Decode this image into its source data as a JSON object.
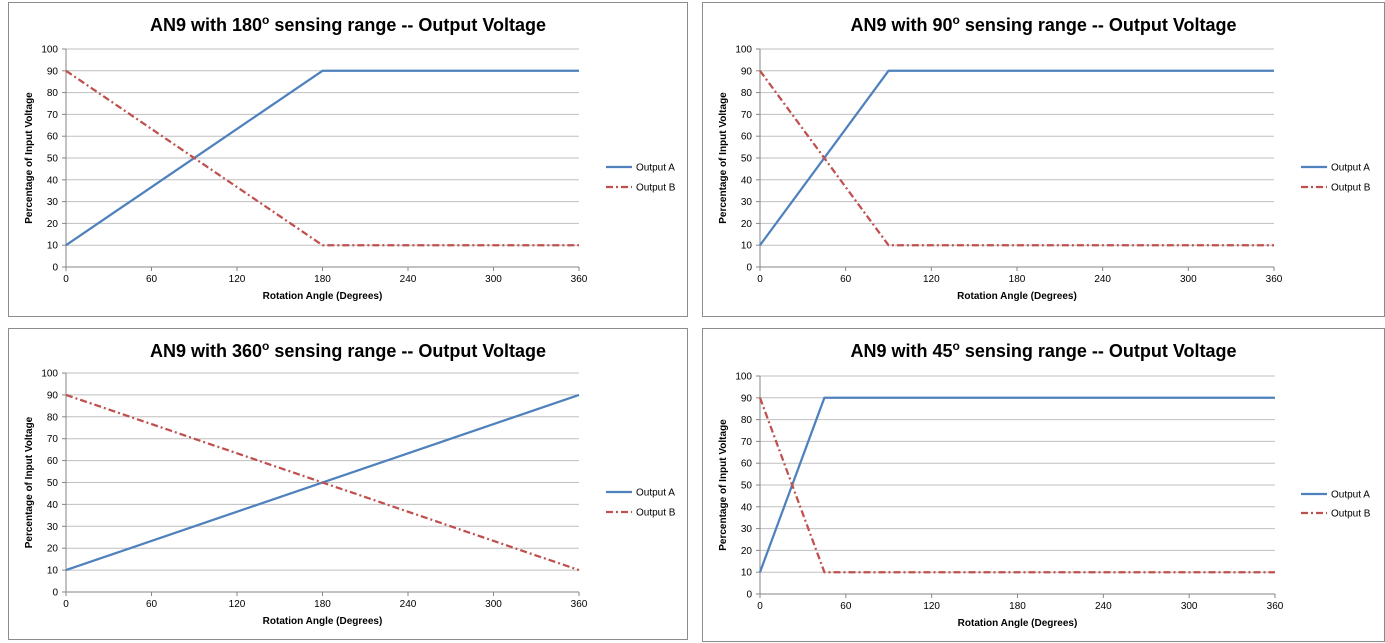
{
  "chart_data": [
    {
      "type": "line",
      "title": {
        "prefix": "AN9 with 180",
        "sup": "o",
        "suffix": " sensing range -- Output Voltage"
      },
      "xlabel": "Rotation Angle (Degrees)",
      "ylabel": "Percentage of Input Voltage",
      "xlim": [
        0,
        360
      ],
      "ylim": [
        0,
        100
      ],
      "xticks": [
        0,
        60,
        120,
        180,
        240,
        300,
        360
      ],
      "yticks": [
        0,
        10,
        20,
        30,
        40,
        50,
        60,
        70,
        80,
        90,
        100
      ],
      "grid": true,
      "legend_position": "right",
      "series": [
        {
          "name": "Output A",
          "color": "#4F81BD",
          "style": "solid",
          "points": [
            [
              0,
              10
            ],
            [
              180,
              90
            ],
            [
              360,
              90
            ]
          ]
        },
        {
          "name": "Output B",
          "color": "#C0504D",
          "style": "dash-dot",
          "points": [
            [
              0,
              90
            ],
            [
              180,
              10
            ],
            [
              360,
              10
            ]
          ]
        }
      ]
    },
    {
      "type": "line",
      "title": {
        "prefix": "AN9 with 90",
        "sup": "o",
        "suffix": " sensing range -- Output Voltage"
      },
      "xlabel": "Rotation Angle (Degrees)",
      "ylabel": "Percentage of Input Voltage",
      "xlim": [
        0,
        360
      ],
      "ylim": [
        0,
        100
      ],
      "xticks": [
        0,
        60,
        120,
        180,
        240,
        300,
        360
      ],
      "yticks": [
        0,
        10,
        20,
        30,
        40,
        50,
        60,
        70,
        80,
        90,
        100
      ],
      "grid": true,
      "legend_position": "right",
      "series": [
        {
          "name": "Output A",
          "color": "#4F81BD",
          "style": "solid",
          "points": [
            [
              0,
              10
            ],
            [
              90,
              90
            ],
            [
              360,
              90
            ]
          ]
        },
        {
          "name": "Output B",
          "color": "#C0504D",
          "style": "dash-dot",
          "points": [
            [
              0,
              90
            ],
            [
              90,
              10
            ],
            [
              360,
              10
            ]
          ]
        }
      ]
    },
    {
      "type": "line",
      "title": {
        "prefix": "AN9 with 360",
        "sup": "o",
        "suffix": " sensing range -- Output Voltage"
      },
      "xlabel": "Rotation Angle (Degrees)",
      "ylabel": "Percentage of Input Voltage",
      "xlim": [
        0,
        360
      ],
      "ylim": [
        0,
        100
      ],
      "xticks": [
        0,
        60,
        120,
        180,
        240,
        300,
        360
      ],
      "yticks": [
        0,
        10,
        20,
        30,
        40,
        50,
        60,
        70,
        80,
        90,
        100
      ],
      "grid": true,
      "legend_position": "right",
      "series": [
        {
          "name": "Output A",
          "color": "#4F81BD",
          "style": "solid",
          "points": [
            [
              0,
              10
            ],
            [
              360,
              90
            ]
          ]
        },
        {
          "name": "Output B",
          "color": "#C0504D",
          "style": "dash-dot",
          "points": [
            [
              0,
              90
            ],
            [
              360,
              10
            ]
          ]
        }
      ]
    },
    {
      "type": "line",
      "title": {
        "prefix": "AN9 with 45",
        "sup": "o",
        "suffix": " sensing range -- Output Voltage"
      },
      "xlabel": "Rotation Angle (Degrees)",
      "ylabel": "Percentage of Input Voltage",
      "xlim": [
        0,
        360
      ],
      "ylim": [
        0,
        100
      ],
      "xticks": [
        0,
        60,
        120,
        180,
        240,
        300,
        360
      ],
      "yticks": [
        0,
        10,
        20,
        30,
        40,
        50,
        60,
        70,
        80,
        90,
        100
      ],
      "grid": true,
      "legend_position": "right",
      "series": [
        {
          "name": "Output A",
          "color": "#4F81BD",
          "style": "solid",
          "points": [
            [
              0,
              10
            ],
            [
              45,
              90
            ],
            [
              360,
              90
            ]
          ]
        },
        {
          "name": "Output B",
          "color": "#C0504D",
          "style": "dash-dot",
          "points": [
            [
              0,
              90
            ],
            [
              45,
              10
            ],
            [
              360,
              10
            ]
          ]
        }
      ]
    }
  ]
}
